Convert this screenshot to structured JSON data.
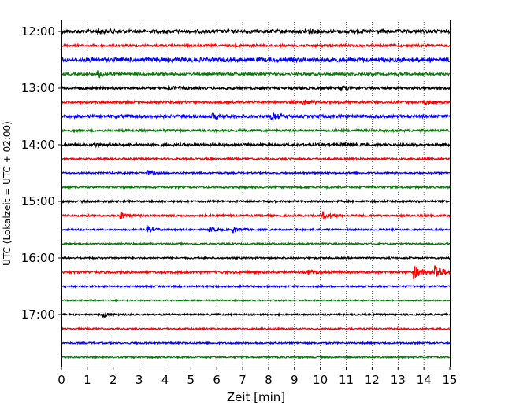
{
  "chart_data": {
    "type": "line",
    "title": "",
    "xlabel": "Zeit  [min]",
    "ylabel": "UTC (Lokalzeit = UTC + 02:00)",
    "xlim": [
      0,
      15
    ],
    "x_ticks": [
      "0",
      "1",
      "2",
      "3",
      "4",
      "5",
      "6",
      "7",
      "8",
      "9",
      "10",
      "11",
      "12",
      "13",
      "14",
      "15"
    ],
    "y_ticks": [
      "12:00",
      "13:00",
      "14:00",
      "15:00",
      "16:00",
      "17:00"
    ],
    "grid": "vertical dotted lines at each minute",
    "trace_interval_min": 15,
    "first_trace": "12:00",
    "trace_count": 24,
    "trace_colors": [
      "#000000",
      "#ff0000",
      "#0000ff",
      "#008000"
    ],
    "noise_levels": [
      2.2,
      1.4,
      2.6,
      1.6,
      1.6,
      1.4,
      1.8,
      1.4,
      1.6,
      1.2,
      1.0,
      1.2,
      1.2,
      1.2,
      1.0,
      1.0,
      1.0,
      1.4,
      1.0,
      0.8,
      1.0,
      1.0,
      1.0,
      1.0
    ],
    "events": [
      {
        "trace": 0,
        "minute": 1.4,
        "amplitude": 3
      },
      {
        "trace": 0,
        "minute": 9.4,
        "amplitude": 3
      },
      {
        "trace": 3,
        "minute": 1.4,
        "amplitude": 5
      },
      {
        "trace": 4,
        "minute": 4.1,
        "amplitude": 2.5
      },
      {
        "trace": 4,
        "minute": 10.8,
        "amplitude": 3
      },
      {
        "trace": 5,
        "minute": 9.3,
        "amplitude": 3
      },
      {
        "trace": 5,
        "minute": 14.0,
        "amplitude": 3
      },
      {
        "trace": 6,
        "minute": 8.1,
        "amplitude": 4
      },
      {
        "trace": 6,
        "minute": 5.8,
        "amplitude": 3
      },
      {
        "trace": 8,
        "minute": 1.2,
        "amplitude": 2.5
      },
      {
        "trace": 8,
        "minute": 10.8,
        "amplitude": 2.5
      },
      {
        "trace": 10,
        "minute": 3.3,
        "amplitude": 3
      },
      {
        "trace": 13,
        "minute": 2.2,
        "amplitude": 6
      },
      {
        "trace": 13,
        "minute": 10.1,
        "amplitude": 5
      },
      {
        "trace": 14,
        "minute": 3.3,
        "amplitude": 4
      },
      {
        "trace": 14,
        "minute": 5.7,
        "amplitude": 4
      },
      {
        "trace": 14,
        "minute": 6.6,
        "amplitude": 4
      },
      {
        "trace": 17,
        "minute": 13.6,
        "amplitude": 9
      },
      {
        "trace": 17,
        "minute": 14.4,
        "amplitude": 12
      },
      {
        "trace": 17,
        "minute": 9.5,
        "amplitude": 2.5
      },
      {
        "trace": 20,
        "minute": 1.6,
        "amplitude": 3
      }
    ]
  }
}
